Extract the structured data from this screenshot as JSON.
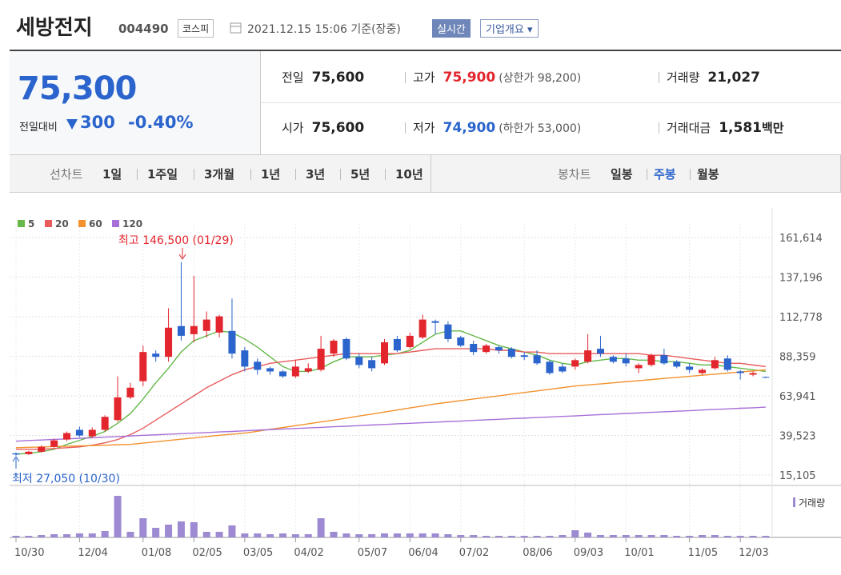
{
  "header": {
    "title": "세방전지",
    "code": "004490",
    "market": "코스피",
    "datetime": "2021.12.15 15:06 기준(장중)",
    "realtime": "실시간",
    "company_info": "기업개요"
  },
  "quote": {
    "price": "75,300",
    "change_label": "전일대비",
    "change": "300",
    "change_rate": "-0.40%",
    "stats": [
      {
        "label": "전일",
        "value": "75,600",
        "color": "#222222"
      },
      {
        "label": "고가",
        "value": "75,900",
        "note": "(상한가 98,200)",
        "color": "#e3262d"
      },
      {
        "label": "거래량",
        "value": "21,027",
        "color": "#222222"
      },
      {
        "label": "시가",
        "value": "75,600",
        "color": "#222222"
      },
      {
        "label": "저가",
        "value": "74,900",
        "note": "(하한가 53,000)",
        "color": "#2a64cc"
      },
      {
        "label": "거래대금",
        "value": "1,581",
        "unit": "백만",
        "color": "#222222"
      }
    ]
  },
  "tabs": {
    "line_label": "선차트",
    "line": [
      "1일",
      "1주일",
      "3개월",
      "1년",
      "3년",
      "5년",
      "10년"
    ],
    "candle_label": "봉차트",
    "candle": [
      "일봉",
      "주봉",
      "월봉"
    ],
    "active_candle": 1
  },
  "chart_data": {
    "type": "candlestick",
    "categories": [
      "10/30",
      null,
      null,
      null,
      null,
      "12/04",
      null,
      null,
      null,
      null,
      "01/08",
      null,
      null,
      null,
      "02/05",
      null,
      null,
      null,
      "03/05",
      null,
      null,
      null,
      "04/02",
      null,
      null,
      null,
      null,
      "05/07",
      null,
      null,
      null,
      "06/04",
      null,
      null,
      null,
      "07/02",
      null,
      null,
      null,
      null,
      "08/06",
      null,
      null,
      null,
      "09/03",
      null,
      null,
      null,
      "10/01",
      null,
      null,
      null,
      null,
      "11/05",
      null,
      null,
      null,
      "12/03",
      null,
      null
    ],
    "open": [
      28500,
      28000,
      29500,
      32500,
      37000,
      43000,
      39000,
      43000,
      49000,
      63000,
      73000,
      90000,
      88000,
      107000,
      102000,
      104000,
      103000,
      104000,
      92000,
      85000,
      81000,
      79000,
      76000,
      79000,
      80000,
      90000,
      99000,
      88000,
      86000,
      84000,
      99000,
      94000,
      100000,
      110000,
      108000,
      100000,
      96000,
      91000,
      94000,
      93000,
      89000,
      89000,
      85000,
      82000,
      82000,
      85000,
      93000,
      88000,
      87000,
      81000,
      83000,
      89000,
      85000,
      82000,
      78000,
      81000,
      87000,
      79000,
      77000,
      75600
    ],
    "high": [
      29000,
      30000,
      33500,
      37500,
      42000,
      45000,
      44500,
      52000,
      76000,
      72000,
      95000,
      92000,
      118000,
      146500,
      138000,
      116000,
      114000,
      124000,
      94000,
      87000,
      82000,
      80000,
      86000,
      84000,
      101000,
      99000,
      100000,
      90000,
      88000,
      99000,
      101000,
      103000,
      114000,
      111000,
      110000,
      101000,
      98000,
      96000,
      95000,
      94000,
      91000,
      92000,
      86000,
      84000,
      87000,
      102000,
      101000,
      89000,
      90000,
      84000,
      90000,
      93000,
      86000,
      84000,
      81000,
      88000,
      89000,
      80000,
      79000,
      75900
    ],
    "low": [
      27050,
      27500,
      29000,
      32000,
      36000,
      38500,
      38000,
      42000,
      48000,
      62000,
      70000,
      85000,
      85000,
      98000,
      97000,
      100000,
      100000,
      87000,
      79000,
      77000,
      77000,
      75000,
      75000,
      78000,
      79000,
      88000,
      86000,
      81000,
      79000,
      83000,
      91000,
      93000,
      99000,
      102000,
      97000,
      94000,
      89000,
      90000,
      90000,
      87000,
      86000,
      83000,
      77000,
      78000,
      80000,
      84000,
      88000,
      84000,
      82000,
      78000,
      82000,
      83000,
      81000,
      78000,
      77000,
      80000,
      79000,
      74000,
      76000,
      74900
    ],
    "close": [
      27800,
      29500,
      32500,
      36500,
      41000,
      39500,
      43000,
      51000,
      63000,
      69000,
      91000,
      88000,
      106000,
      101000,
      107000,
      111000,
      113000,
      90000,
      82000,
      80000,
      79000,
      76000,
      82000,
      81000,
      93000,
      98000,
      87000,
      83000,
      81000,
      97000,
      92000,
      101000,
      111000,
      109000,
      99000,
      95000,
      91000,
      95000,
      92000,
      88000,
      88000,
      84000,
      78000,
      79000,
      86000,
      92000,
      90000,
      85000,
      84000,
      83000,
      89000,
      84000,
      82000,
      80000,
      80000,
      86000,
      80000,
      78000,
      78000,
      75300
    ],
    "up_color": "#e3262d",
    "down_color": "#2a64cc",
    "series": [
      {
        "name": "5",
        "color": "#66b84a",
        "values": [
          28000,
          28500,
          29500,
          31000,
          34000,
          36500,
          39000,
          42000,
          47000,
          53000,
          62000,
          72000,
          81000,
          91000,
          98000,
          101000,
          104000,
          103000,
          99000,
          94000,
          88000,
          82000,
          79000,
          79000,
          81000,
          85000,
          88000,
          88000,
          88000,
          89000,
          90000,
          92000,
          97000,
          102000,
          104000,
          104000,
          101000,
          98000,
          95000,
          93000,
          91000,
          89000,
          86000,
          84000,
          83000,
          85000,
          86000,
          87000,
          87000,
          86000,
          86000,
          85000,
          85000,
          84000,
          83000,
          83000,
          82000,
          81000,
          80000,
          79000
        ]
      },
      {
        "name": "20",
        "color": "#e85c5c",
        "values": [
          31000,
          31000,
          31000,
          31500,
          32000,
          32500,
          33500,
          35000,
          37000,
          40000,
          44000,
          49000,
          54000,
          59000,
          64000,
          69000,
          73000,
          77000,
          80000,
          82000,
          84000,
          85000,
          86000,
          87000,
          88000,
          89000,
          90000,
          90000,
          90000,
          90000,
          90000,
          91000,
          92000,
          93000,
          93000,
          93000,
          93000,
          93000,
          92000,
          92000,
          91000,
          91000,
          90000,
          90000,
          90000,
          90000,
          90000,
          90000,
          90000,
          90000,
          89000,
          89000,
          88000,
          87000,
          86000,
          85000,
          84000,
          84000,
          83000,
          82000
        ]
      },
      {
        "name": "60",
        "color": "#f2922e",
        "values": [
          32000,
          32200,
          32400,
          32700,
          32900,
          33100,
          33300,
          33500,
          33800,
          34000,
          34800,
          35600,
          36400,
          37200,
          38000,
          38800,
          39600,
          40300,
          41000,
          42100,
          43300,
          44400,
          45600,
          46700,
          47900,
          49000,
          50200,
          51500,
          52700,
          54000,
          55200,
          56500,
          57700,
          59000,
          60000,
          61000,
          62000,
          63000,
          64000,
          65000,
          66000,
          67000,
          68000,
          69000,
          70000,
          70700,
          71300,
          72000,
          72700,
          73300,
          74000,
          74700,
          75300,
          76000,
          76700,
          77300,
          78000,
          78700,
          79300,
          80000
        ]
      },
      {
        "name": "120",
        "color": "#a770d8",
        "values": [
          36000,
          36400,
          36700,
          37100,
          37400,
          37800,
          38100,
          38500,
          38800,
          39200,
          39600,
          39900,
          40300,
          40600,
          41000,
          41300,
          41700,
          42000,
          42400,
          42800,
          43100,
          43500,
          43800,
          44200,
          44500,
          44900,
          45200,
          45600,
          46000,
          46300,
          46700,
          47000,
          47400,
          47700,
          48100,
          48400,
          48800,
          49200,
          49500,
          49900,
          50200,
          50600,
          50900,
          51300,
          51600,
          52000,
          52400,
          52700,
          53100,
          53400,
          53800,
          54100,
          54500,
          54800,
          55200,
          55600,
          55900,
          56300,
          56600,
          57000
        ]
      }
    ],
    "volume": {
      "name": "거래량",
      "color": "#9d8ad2",
      "ylim": [
        0,
        60
      ],
      "values": [
        2,
        2,
        3,
        4,
        4,
        5,
        5,
        8,
        52,
        7,
        24,
        12,
        16,
        20,
        19,
        7,
        7,
        15,
        5,
        5,
        4,
        5,
        4,
        4,
        24,
        7,
        5,
        4,
        4,
        5,
        5,
        5,
        5,
        5,
        4,
        3,
        3,
        2,
        2,
        2,
        2,
        2,
        2,
        3,
        9,
        6,
        3,
        3,
        3,
        3,
        3,
        3,
        2,
        2,
        3,
        3,
        2,
        2,
        2,
        2
      ]
    },
    "ylim": [
      8700,
      170000
    ],
    "yticks": [
      {
        "value": 15105,
        "label": "15,105"
      },
      {
        "value": 39523,
        "label": "39,523"
      },
      {
        "value": 63941,
        "label": "63,941"
      },
      {
        "value": 88359,
        "label": "88,359"
      },
      {
        "value": 112778,
        "label": "112,778"
      },
      {
        "value": 137196,
        "label": "137,196"
      },
      {
        "value": 161614,
        "label": "161,614"
      }
    ],
    "grid": true,
    "annotations": {
      "high": "최고 146,500 (01/29)",
      "low": "최저 27,050 (10/30)"
    }
  }
}
